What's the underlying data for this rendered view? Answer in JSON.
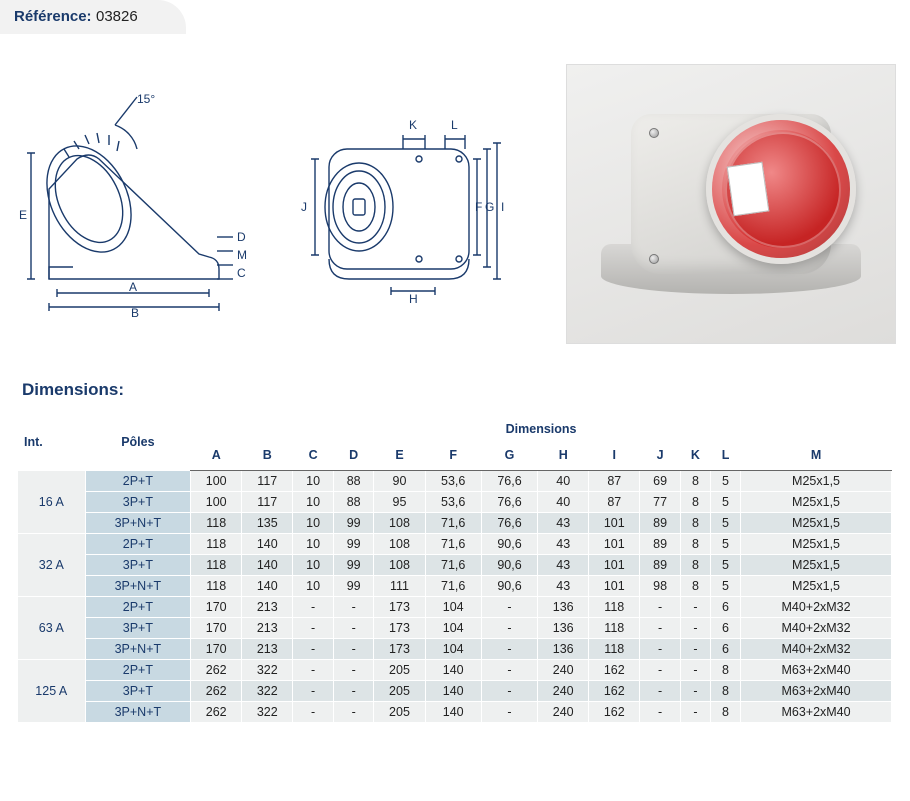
{
  "reference": {
    "label": "Référence:",
    "value": "03826"
  },
  "dimensions_title": "Dimensions:",
  "columns": {
    "int": "Int.",
    "poles": "Pôles",
    "dims_group": "Dimensions",
    "letters": [
      "A",
      "B",
      "C",
      "D",
      "E",
      "F",
      "G",
      "H",
      "I",
      "J",
      "K",
      "L",
      "M"
    ]
  },
  "groups": [
    {
      "int": "16 A",
      "rows": [
        {
          "pole": "2P+T",
          "v": [
            "100",
            "117",
            "10",
            "88",
            "90",
            "53,6",
            "76,6",
            "40",
            "87",
            "69",
            "8",
            "5",
            "M25x1,5"
          ]
        },
        {
          "pole": "3P+T",
          "v": [
            "100",
            "117",
            "10",
            "88",
            "95",
            "53,6",
            "76,6",
            "40",
            "87",
            "77",
            "8",
            "5",
            "M25x1,5"
          ]
        },
        {
          "pole": "3P+N+T",
          "v": [
            "118",
            "135",
            "10",
            "99",
            "108",
            "71,6",
            "76,6",
            "43",
            "101",
            "89",
            "8",
            "5",
            "M25x1,5"
          ]
        }
      ]
    },
    {
      "int": "32 A",
      "rows": [
        {
          "pole": "2P+T",
          "v": [
            "118",
            "140",
            "10",
            "99",
            "108",
            "71,6",
            "90,6",
            "43",
            "101",
            "89",
            "8",
            "5",
            "M25x1,5"
          ]
        },
        {
          "pole": "3P+T",
          "v": [
            "118",
            "140",
            "10",
            "99",
            "108",
            "71,6",
            "90,6",
            "43",
            "101",
            "89",
            "8",
            "5",
            "M25x1,5"
          ]
        },
        {
          "pole": "3P+N+T",
          "v": [
            "118",
            "140",
            "10",
            "99",
            "111",
            "71,6",
            "90,6",
            "43",
            "101",
            "98",
            "8",
            "5",
            "M25x1,5"
          ]
        }
      ]
    },
    {
      "int": "63 A",
      "rows": [
        {
          "pole": "2P+T",
          "v": [
            "170",
            "213",
            "-",
            "-",
            "173",
            "104",
            "-",
            "136",
            "118",
            "-",
            "-",
            "6",
            "M40+2xM32"
          ]
        },
        {
          "pole": "3P+T",
          "v": [
            "170",
            "213",
            "-",
            "-",
            "173",
            "104",
            "-",
            "136",
            "118",
            "-",
            "-",
            "6",
            "M40+2xM32"
          ]
        },
        {
          "pole": "3P+N+T",
          "v": [
            "170",
            "213",
            "-",
            "-",
            "173",
            "104",
            "-",
            "136",
            "118",
            "-",
            "-",
            "6",
            "M40+2xM32"
          ]
        }
      ]
    },
    {
      "int": "125 A",
      "rows": [
        {
          "pole": "2P+T",
          "v": [
            "262",
            "322",
            "-",
            "-",
            "205",
            "140",
            "-",
            "240",
            "162",
            "-",
            "-",
            "8",
            "M63+2xM40"
          ]
        },
        {
          "pole": "3P+T",
          "v": [
            "262",
            "322",
            "-",
            "-",
            "205",
            "140",
            "-",
            "240",
            "162",
            "-",
            "-",
            "8",
            "M63+2xM40"
          ]
        },
        {
          "pole": "3P+N+T",
          "v": [
            "262",
            "322",
            "-",
            "-",
            "205",
            "140",
            "-",
            "240",
            "162",
            "-",
            "-",
            "8",
            "M63+2xM40"
          ]
        }
      ]
    }
  ],
  "colors": {
    "heading": "#1a3a6b",
    "ref_bg": "#f2f2f2",
    "pole_bg": "#c8d9e2",
    "band_a": "#eef0f0",
    "band_b": "#dde4e6",
    "socket_red": "#d42a2a",
    "housing_grey": "#d8d7d5"
  },
  "diagram": {
    "angle_label": "15°",
    "labels_left": [
      "E",
      "A",
      "B",
      "C",
      "D",
      "M"
    ],
    "labels_right": [
      "J",
      "K",
      "L",
      "F",
      "G",
      "I",
      "H"
    ]
  },
  "typography": {
    "base_pt": 12.5,
    "title_pt": 17,
    "ref_pt": 15,
    "family": "Arial"
  }
}
